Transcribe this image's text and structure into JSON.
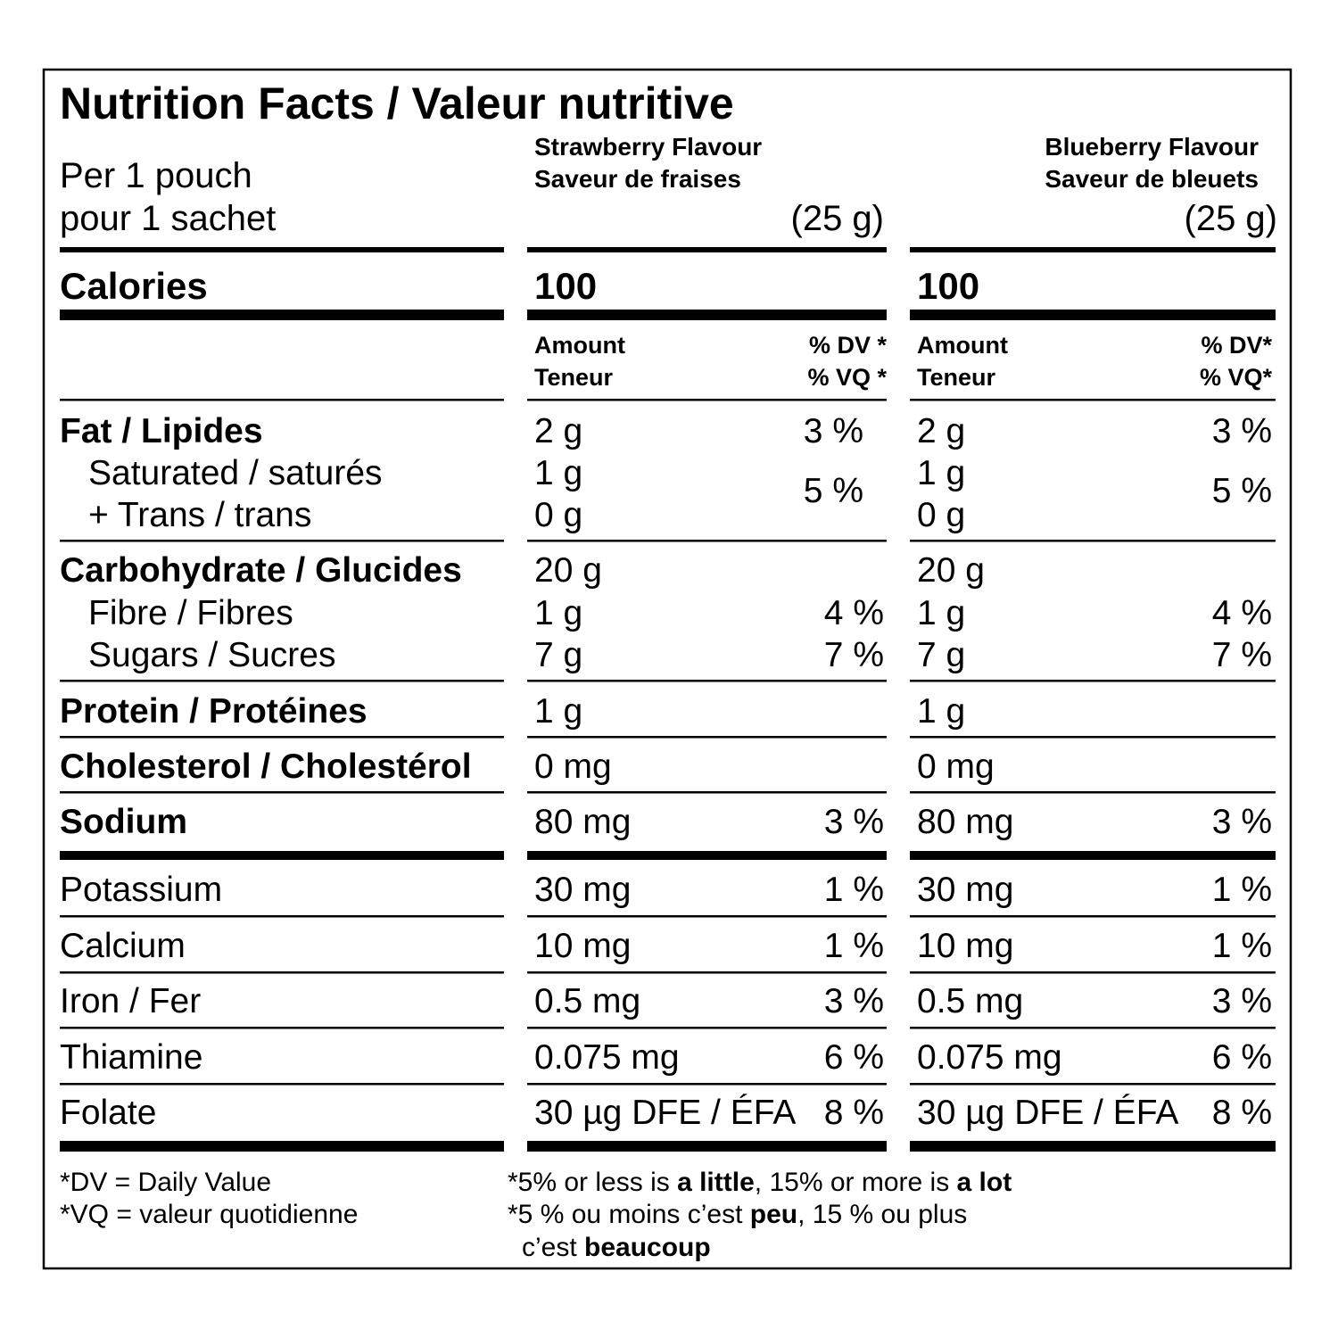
{
  "header": {
    "title": "Nutrition Facts / Valeur nutritive",
    "serving": [
      "Per 1 pouch",
      "pour 1 sachet"
    ],
    "calories_label": "Calories"
  },
  "products": [
    {
      "name": [
        "Strawberry Flavour",
        "Saveur de fraises"
      ],
      "size": "(25 g)",
      "calories": "100",
      "amount_header": [
        "Amount",
        "Teneur"
      ],
      "dv_header": [
        "% DV *",
        "% VQ *"
      ]
    },
    {
      "name": [
        "Blueberry Flavour",
        "Saveur de bleuets"
      ],
      "size": "(25 g)",
      "calories": "100",
      "amount_header": [
        "Amount",
        "Teneur"
      ],
      "dv_header": [
        "% DV*",
        "% VQ*"
      ]
    }
  ],
  "rows": [
    {
      "label": "Fat / Lipides",
      "amounts": [
        "2 g",
        "2 g"
      ],
      "dv": [
        "3 %",
        "3 %"
      ]
    },
    {
      "label": "Saturated / saturés",
      "amounts": [
        "1 g",
        "1 g"
      ],
      "dv": [
        "5 %",
        "5 %"
      ]
    },
    {
      "label": "+ Trans / trans",
      "amounts": [
        "0 g",
        "0 g"
      ],
      "dv": [
        null,
        null
      ]
    },
    {
      "label": "Carbohydrate / Glucides",
      "amounts": [
        "20 g",
        "20 g"
      ],
      "dv": [
        null,
        null
      ]
    },
    {
      "label": "Fibre / Fibres",
      "amounts": [
        "1 g",
        "1 g"
      ],
      "dv": [
        "4 %",
        "4 %"
      ]
    },
    {
      "label": "Sugars / Sucres",
      "amounts": [
        "7 g",
        "7 g"
      ],
      "dv": [
        "7 %",
        "7 %"
      ]
    },
    {
      "label": "Protein / Protéines",
      "amounts": [
        "1 g",
        "1 g"
      ],
      "dv": [
        null,
        null
      ]
    },
    {
      "label": "Cholesterol / Cholestérol",
      "amounts": [
        "0 mg",
        "0 mg"
      ],
      "dv": [
        null,
        null
      ]
    },
    {
      "label": "Sodium",
      "amounts": [
        "80 mg",
        "80 mg"
      ],
      "dv": [
        "3 %",
        "3 %"
      ]
    },
    {
      "label": "Potassium",
      "amounts": [
        "30 mg",
        "30 mg"
      ],
      "dv": [
        "1 %",
        "1 %"
      ]
    },
    {
      "label": "Calcium",
      "amounts": [
        "10 mg",
        "10 mg"
      ],
      "dv": [
        "1 %",
        "1 %"
      ]
    },
    {
      "label": "Iron / Fer",
      "amounts": [
        "0.5 mg",
        "0.5 mg"
      ],
      "dv": [
        "3 %",
        "3 %"
      ]
    },
    {
      "label": "Thiamine",
      "amounts": [
        "0.075 mg",
        "0.075 mg"
      ],
      "dv": [
        "6 %",
        "6 %"
      ]
    },
    {
      "label": "Folate",
      "amounts": [
        "30 µg DFE / ÉFA",
        "30 µg DFE / ÉFA"
      ],
      "dv": [
        "8 %",
        "8 %"
      ]
    }
  ],
  "footnotes": {
    "left": [
      "*DV = Daily Value",
      "*VQ = valeur quotidienne"
    ],
    "right": [
      [
        "*5% or less is ",
        "a little",
        ", 15% or more is ",
        "a lot"
      ],
      [
        "*5 % ou moins c’est ",
        "peu",
        ", 15 % ou plus"
      ],
      [
        "c’est ",
        "beaucoup"
      ]
    ]
  }
}
